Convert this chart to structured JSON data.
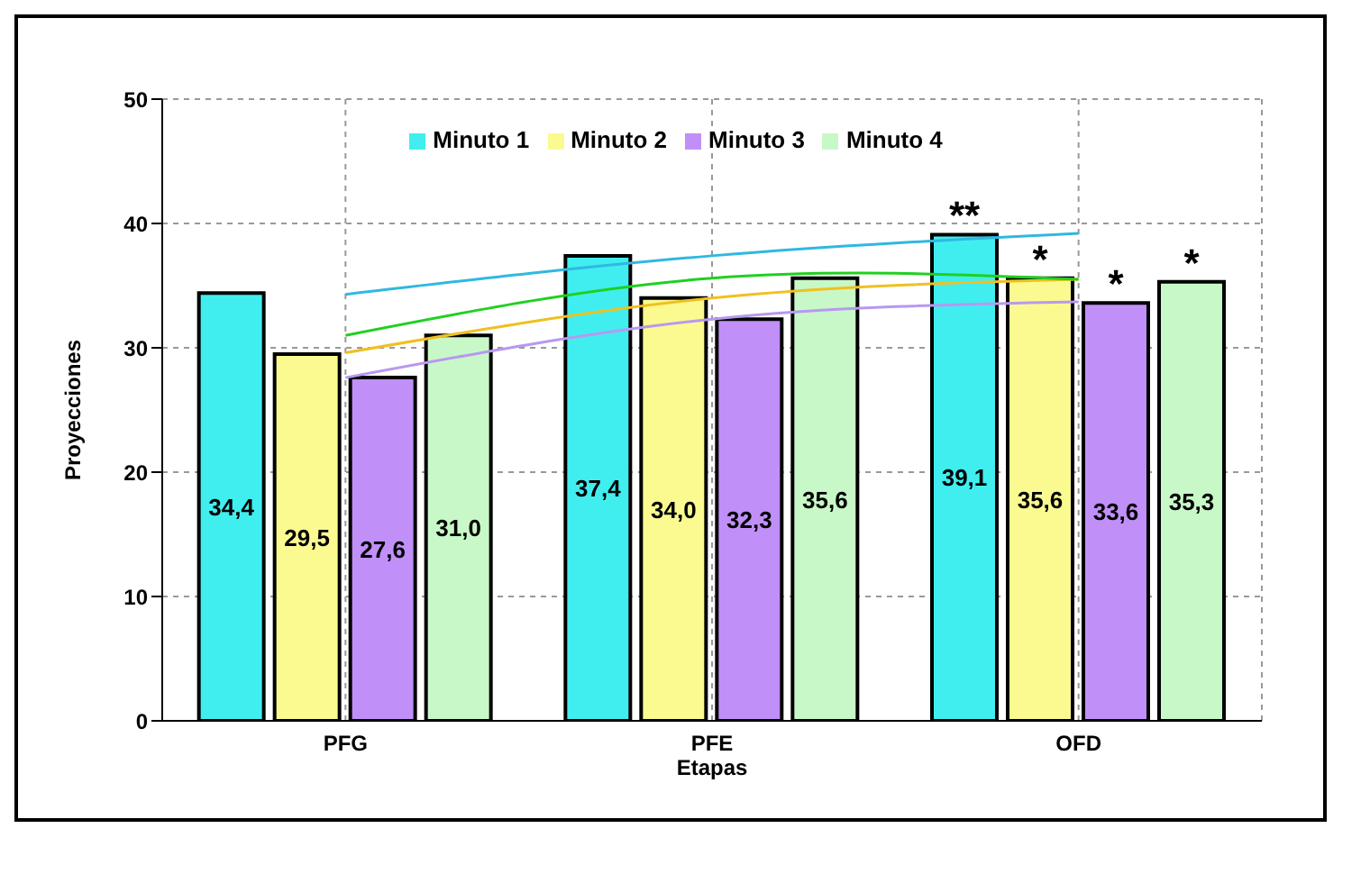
{
  "chart_data": {
    "type": "bar",
    "xlabel": "Etapas",
    "ylabel": "Proyecciones",
    "categories": [
      "PFG",
      "PFE",
      "OFD"
    ],
    "series": [
      {
        "name": "Minuto 1",
        "color": "#40eef0",
        "values": [
          34.4,
          37.4,
          39.1
        ]
      },
      {
        "name": "Minuto 2",
        "color": "#fafa90",
        "values": [
          29.5,
          34.0,
          35.6
        ]
      },
      {
        "name": "Minuto 3",
        "color": "#c090f8",
        "values": [
          27.6,
          32.3,
          33.6
        ]
      },
      {
        "name": "Minuto 4",
        "color": "#c8f8c8",
        "values": [
          31.0,
          35.6,
          35.3
        ]
      },
      {
        "type": "line",
        "color": "#30b8e0",
        "x": [
          "PFG",
          "PFE",
          "OFD"
        ],
        "values": [
          34.3,
          37.4,
          39.2
        ]
      },
      {
        "type": "line",
        "color": "#f0c020",
        "x": [
          "PFG",
          "PFE",
          "OFD"
        ],
        "values": [
          29.6,
          34.0,
          35.5
        ]
      },
      {
        "type": "line",
        "color": "#b898f0",
        "x": [
          "PFG",
          "PFE",
          "OFD"
        ],
        "values": [
          27.6,
          32.3,
          33.7
        ]
      },
      {
        "type": "line",
        "color": "#20d020",
        "x": [
          "PFG",
          "PFE",
          "OFD"
        ],
        "values": [
          31.0,
          35.6,
          35.5
        ]
      }
    ],
    "value_labels": [
      [
        "34,4",
        "37,4",
        "39,1"
      ],
      [
        "29,5",
        "34,0",
        "35,6"
      ],
      [
        "27,6",
        "32,3",
        "33,6"
      ],
      [
        "31,0",
        "35,6",
        "35,3"
      ]
    ],
    "annotations": [
      {
        "text": "**",
        "x": "OFD",
        "y": 39.1
      },
      {
        "text": "*",
        "x": "OFD",
        "y": 35.6
      },
      {
        "text": "*",
        "x": "OFD",
        "y": 33.6
      },
      {
        "text": "*",
        "x": "OFD",
        "y": 35.3
      }
    ],
    "ylim": [
      0,
      50
    ],
    "yticks": [
      0,
      10,
      20,
      30,
      40,
      50
    ],
    "grid": true,
    "legend": "top",
    "marker": "none",
    "line_style": "solid"
  }
}
